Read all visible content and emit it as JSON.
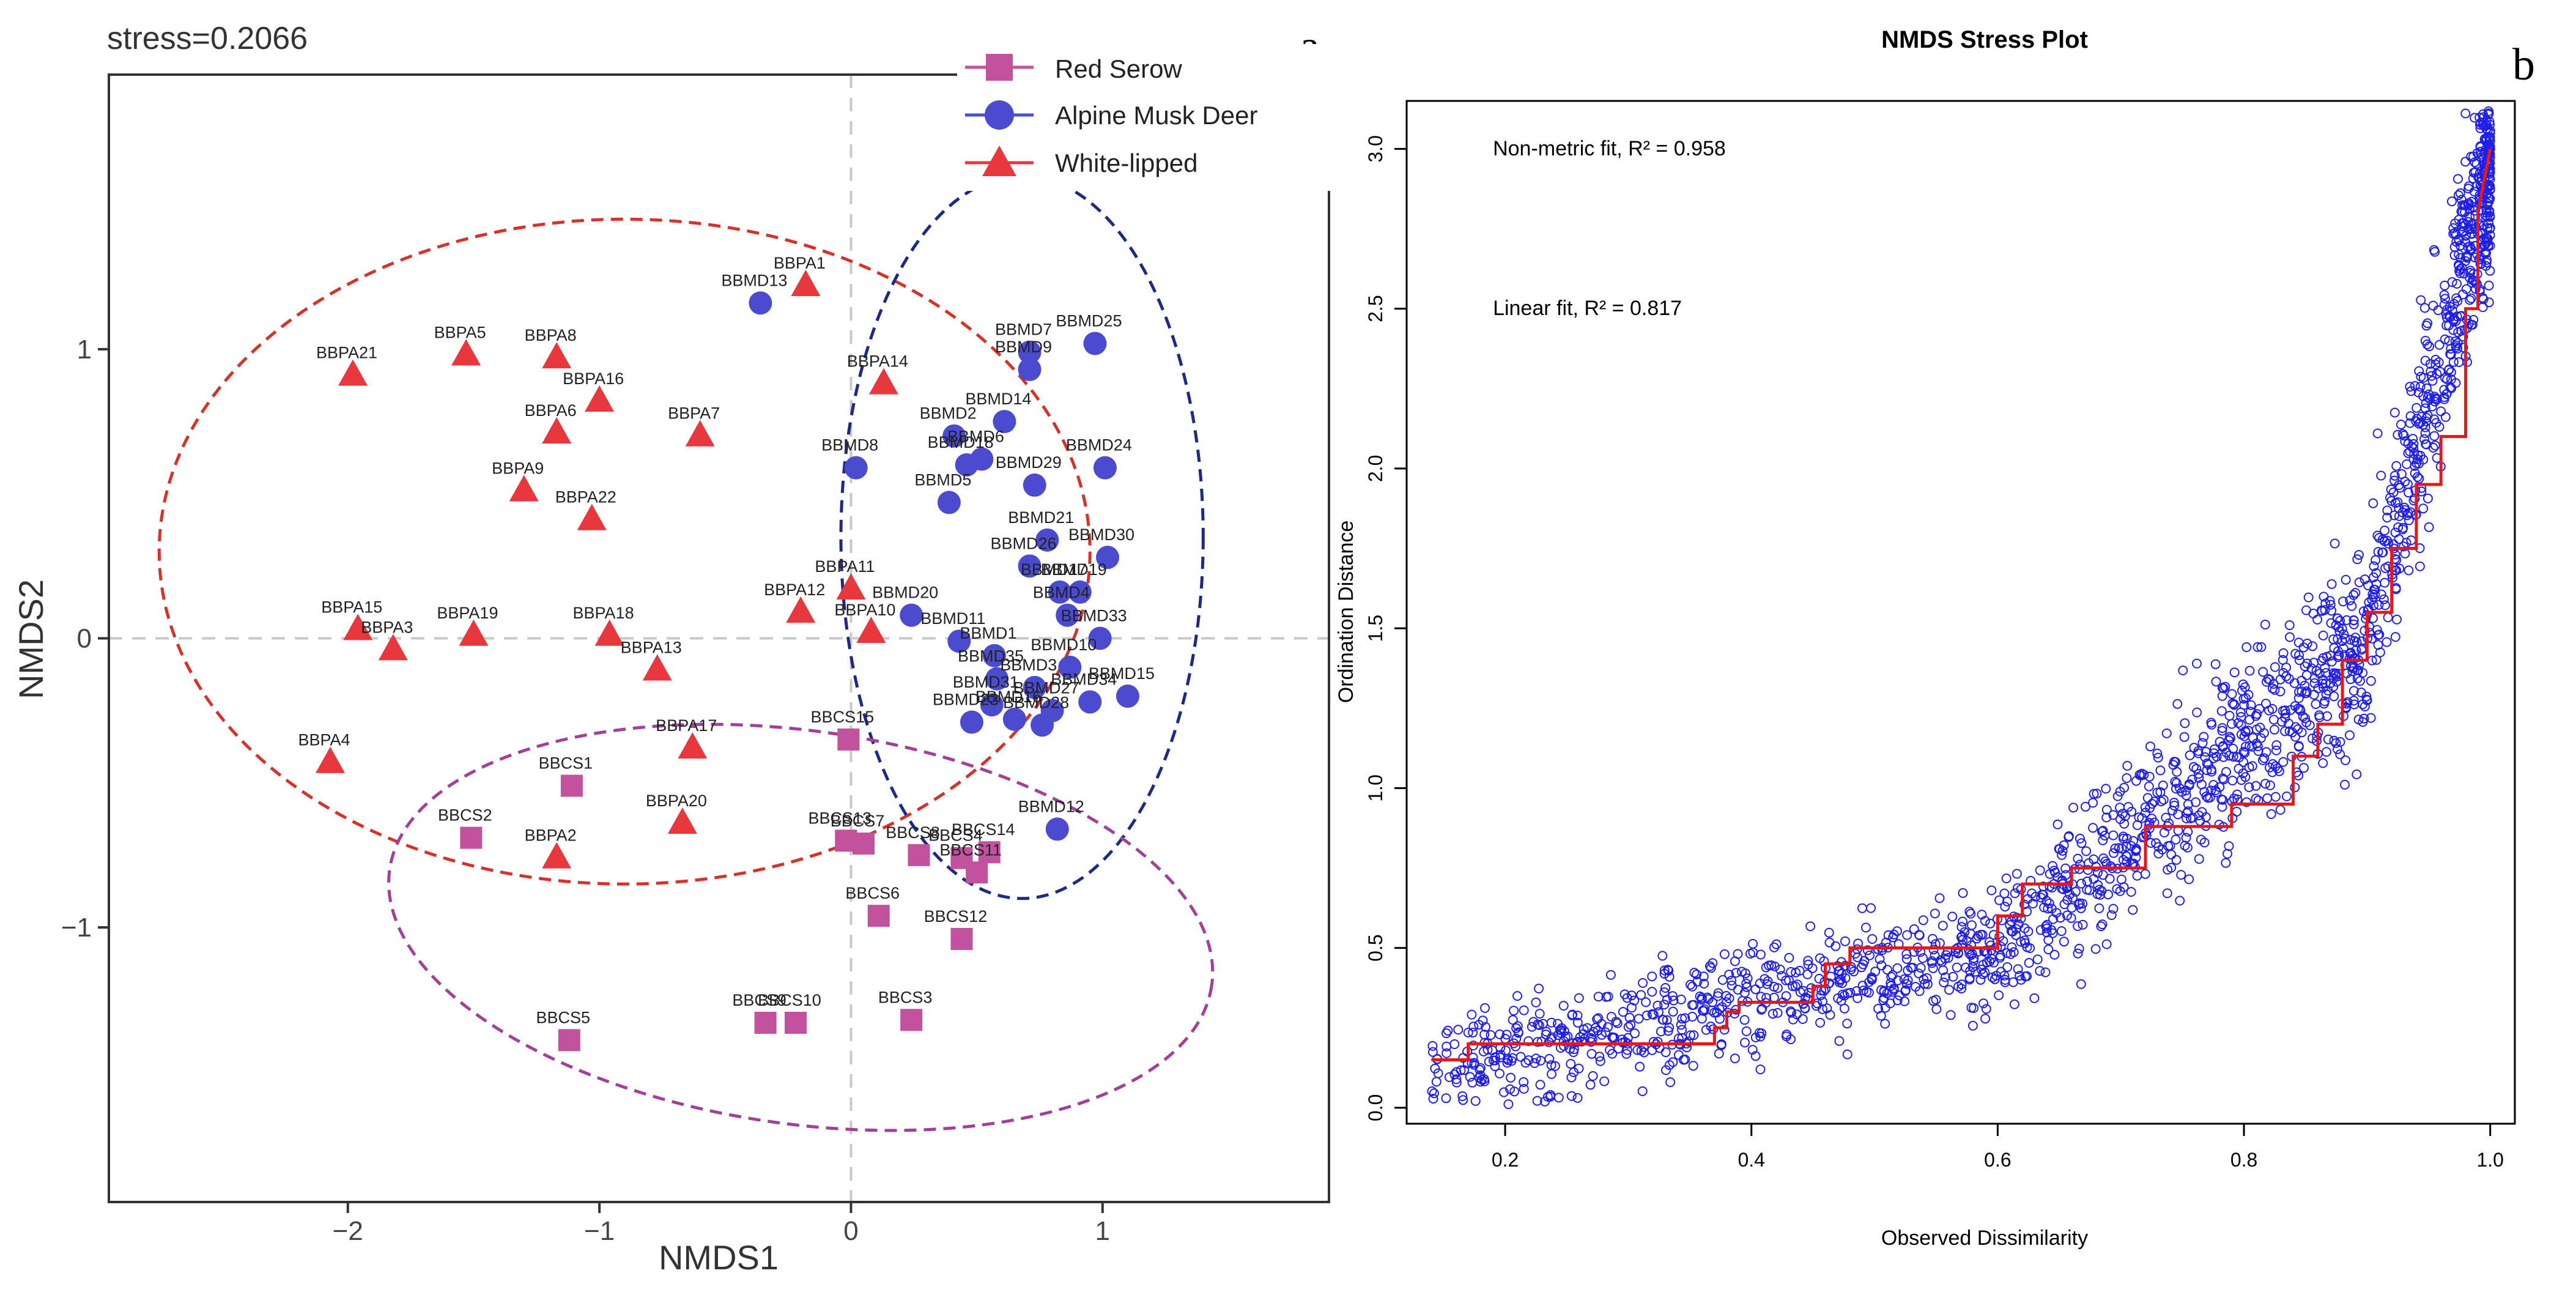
{
  "colors": {
    "red_serow": "#c2519e",
    "musk_deer": "#4a4bcf",
    "white_lipped": "#e8383d",
    "ellipse_red": "#d63228",
    "ellipse_blue": "#1c2a86",
    "ellipse_purple": "#a33f9b",
    "stress_points": "#1f1fe6",
    "stress_step": "#e81818"
  },
  "chart_data": [
    {
      "type": "scatter",
      "panel_label": "a",
      "title": "stress=0.2066",
      "xlabel": "NMDS1",
      "ylabel": "NMDS2",
      "xlim": [
        -2.95,
        1.9
      ],
      "ylim": [
        -1.95,
        1.95
      ],
      "xticks": [
        "−2",
        "−1",
        "0",
        "1"
      ],
      "xtick_values": [
        -2,
        -1,
        0,
        1
      ],
      "yticks": [
        "−1",
        "0",
        "1"
      ],
      "ytick_values": [
        -1,
        0,
        1
      ],
      "legend": {
        "position": "top-right",
        "entries": [
          {
            "label": "Red Serow",
            "shape": "square"
          },
          {
            "label": "Alpine Musk Deer",
            "shape": "circle"
          },
          {
            "label": "White-lipped",
            "shape": "triangle"
          }
        ]
      },
      "ellipses": [
        {
          "group": "White-lipped",
          "center": [
            -0.9,
            0.3
          ],
          "axes": [
            1.85,
            1.15
          ],
          "angle_deg": 0
        },
        {
          "group": "Alpine Musk Deer",
          "center": [
            0.68,
            0.35
          ],
          "axes": [
            0.72,
            1.25
          ],
          "angle_deg": 0
        },
        {
          "group": "Red Serow",
          "center": [
            -0.2,
            -1.0
          ],
          "axes": [
            1.65,
            0.68
          ],
          "angle_deg": -8
        }
      ],
      "series": [
        {
          "name": "White-lipped",
          "shape": "triangle",
          "points": [
            {
              "label": "BBPA1",
              "x": -0.18,
              "y": 1.22
            },
            {
              "label": "BBPA5",
              "x": -1.53,
              "y": 0.98
            },
            {
              "label": "BBPA8",
              "x": -1.17,
              "y": 0.97
            },
            {
              "label": "BBPA21",
              "x": -1.98,
              "y": 0.91
            },
            {
              "label": "BBPA14",
              "x": 0.13,
              "y": 0.88
            },
            {
              "label": "BBPA16",
              "x": -1.0,
              "y": 0.82
            },
            {
              "label": "BBPA6",
              "x": -1.17,
              "y": 0.71
            },
            {
              "label": "BBPA7",
              "x": -0.6,
              "y": 0.7
            },
            {
              "label": "BBPA9",
              "x": -1.3,
              "y": 0.51
            },
            {
              "label": "BBPA22",
              "x": -1.03,
              "y": 0.41
            },
            {
              "label": "BBPA11",
              "x": 0.0,
              "y": 0.17
            },
            {
              "label": "BBPA12",
              "x": -0.2,
              "y": 0.09
            },
            {
              "label": "BBPA15",
              "x": -1.96,
              "y": 0.03
            },
            {
              "label": "BBPA19",
              "x": -1.5,
              "y": 0.01
            },
            {
              "label": "BBPA18",
              "x": -0.96,
              "y": 0.01
            },
            {
              "label": "BBPA3",
              "x": -1.82,
              "y": -0.04
            },
            {
              "label": "BBPA10",
              "x": 0.08,
              "y": 0.02
            },
            {
              "label": "BBPA13",
              "x": -0.77,
              "y": -0.11
            },
            {
              "label": "BBPA17",
              "x": -0.63,
              "y": -0.38
            },
            {
              "label": "BBPA4",
              "x": -2.07,
              "y": -0.43
            },
            {
              "label": "BBPA20",
              "x": -0.67,
              "y": -0.64
            },
            {
              "label": "BBPA2",
              "x": -1.17,
              "y": -0.76
            }
          ]
        },
        {
          "name": "Alpine Musk Deer",
          "shape": "circle",
          "points": [
            {
              "label": "BBMD13",
              "x": -0.36,
              "y": 1.16
            },
            {
              "label": "BBMD25",
              "x": 0.97,
              "y": 1.02
            },
            {
              "label": "BBMD7",
              "x": 0.71,
              "y": 0.99
            },
            {
              "label": "BBMD9",
              "x": 0.71,
              "y": 0.93
            },
            {
              "label": "BBMD14",
              "x": 0.61,
              "y": 0.75
            },
            {
              "label": "BBMD2",
              "x": 0.41,
              "y": 0.7
            },
            {
              "label": "BBMD6",
              "x": 0.52,
              "y": 0.62
            },
            {
              "label": "BBMD18",
              "x": 0.46,
              "y": 0.6
            },
            {
              "label": "BBMD8",
              "x": 0.02,
              "y": 0.59
            },
            {
              "label": "BBMD24",
              "x": 1.01,
              "y": 0.59
            },
            {
              "label": "BBMD29",
              "x": 0.73,
              "y": 0.53
            },
            {
              "label": "BBMD5",
              "x": 0.39,
              "y": 0.47
            },
            {
              "label": "BBMD21",
              "x": 0.78,
              "y": 0.34
            },
            {
              "label": "BBMD30",
              "x": 1.02,
              "y": 0.28
            },
            {
              "label": "BBMD26",
              "x": 0.71,
              "y": 0.25
            },
            {
              "label": "BBMD19",
              "x": 0.91,
              "y": 0.16
            },
            {
              "label": "BBMD17",
              "x": 0.83,
              "y": 0.16
            },
            {
              "label": "BBMD20",
              "x": 0.24,
              "y": 0.08
            },
            {
              "label": "BBMD4",
              "x": 0.86,
              "y": 0.08
            },
            {
              "label": "BBMD33",
              "x": 0.99,
              "y": 0.0
            },
            {
              "label": "BBMD11",
              "x": 0.43,
              "y": -0.01
            },
            {
              "label": "BBMD1",
              "x": 0.57,
              "y": -0.06
            },
            {
              "label": "BBMD10",
              "x": 0.87,
              "y": -0.1
            },
            {
              "label": "BBMD35",
              "x": 0.58,
              "y": -0.14
            },
            {
              "label": "BBMD3",
              "x": 0.73,
              "y": -0.17
            },
            {
              "label": "BBMD15",
              "x": 1.1,
              "y": -0.2
            },
            {
              "label": "BBMD31",
              "x": 0.56,
              "y": -0.23
            },
            {
              "label": "BBMD27",
              "x": 0.8,
              "y": -0.25
            },
            {
              "label": "BBMD23",
              "x": 0.48,
              "y": -0.29
            },
            {
              "label": "BBMD16",
              "x": 0.65,
              "y": -0.28
            },
            {
              "label": "BBMD34",
              "x": 0.95,
              "y": -0.22
            },
            {
              "label": "BBMD28",
              "x": 0.76,
              "y": -0.3
            },
            {
              "label": "BBMD12",
              "x": 0.82,
              "y": -0.66
            }
          ]
        },
        {
          "name": "Red Serow",
          "shape": "square",
          "points": [
            {
              "label": "BBCS15",
              "x": -0.01,
              "y": -0.35
            },
            {
              "label": "BBCS1",
              "x": -1.11,
              "y": -0.51
            },
            {
              "label": "BBCS2",
              "x": -1.51,
              "y": -0.69
            },
            {
              "label": "BBCS13",
              "x": -0.02,
              "y": -0.7
            },
            {
              "label": "BBCS7",
              "x": 0.05,
              "y": -0.71
            },
            {
              "label": "BBCS8",
              "x": 0.27,
              "y": -0.75
            },
            {
              "label": "BBCS4",
              "x": 0.44,
              "y": -0.76
            },
            {
              "label": "BBCS14",
              "x": 0.55,
              "y": -0.74
            },
            {
              "label": "BBCS11",
              "x": 0.5,
              "y": -0.81
            },
            {
              "label": "BBCS6",
              "x": 0.11,
              "y": -0.96
            },
            {
              "label": "BBCS12",
              "x": 0.44,
              "y": -1.04
            },
            {
              "label": "BBCS3",
              "x": 0.24,
              "y": -1.32
            },
            {
              "label": "BBCS9",
              "x": -0.34,
              "y": -1.33
            },
            {
              "label": "BBCS10",
              "x": -0.22,
              "y": -1.33
            },
            {
              "label": "BBCS5",
              "x": -1.12,
              "y": -1.39
            }
          ]
        }
      ]
    },
    {
      "type": "scatter",
      "panel_label": "b",
      "title": "NMDS Stress Plot",
      "xlabel": "Observed Dissimilarity",
      "ylabel": "Ordination Distance",
      "xlim": [
        0.12,
        1.02
      ],
      "ylim": [
        -0.05,
        3.15
      ],
      "xticks": [
        "0.2",
        "0.4",
        "0.6",
        "0.8",
        "1.0"
      ],
      "xtick_values": [
        0.2,
        0.4,
        0.6,
        0.8,
        1.0
      ],
      "yticks": [
        "0.0",
        "0.5",
        "1.0",
        "1.5",
        "2.0",
        "2.5",
        "3.0"
      ],
      "ytick_values": [
        0.0,
        0.5,
        1.0,
        1.5,
        2.0,
        2.5,
        3.0
      ],
      "annotations": [
        {
          "label": "Non-metric fit, R² = 0.958",
          "x": 0.2,
          "y": 2.98
        },
        {
          "label": "Linear fit, R² = 0.817",
          "x": 0.2,
          "y": 2.48
        }
      ],
      "point_cloud": {
        "n_points": 1900,
        "x_range": [
          0.14,
          1.0
        ],
        "y_range": [
          0.0,
          3.12
        ],
        "description_free": true
      },
      "step_line": {
        "x": [
          0.14,
          0.17,
          0.17,
          0.37,
          0.37,
          0.38,
          0.38,
          0.39,
          0.39,
          0.45,
          0.45,
          0.46,
          0.46,
          0.48,
          0.48,
          0.6,
          0.6,
          0.62,
          0.62,
          0.66,
          0.66,
          0.72,
          0.72,
          0.79,
          0.79,
          0.84,
          0.84,
          0.86,
          0.86,
          0.88,
          0.88,
          0.9,
          0.9,
          0.92,
          0.92,
          0.94,
          0.94,
          0.96,
          0.96,
          0.98,
          0.98,
          0.99,
          0.99,
          1.0
        ],
        "y": [
          0.15,
          0.15,
          0.2,
          0.2,
          0.25,
          0.25,
          0.3,
          0.3,
          0.33,
          0.33,
          0.38,
          0.38,
          0.45,
          0.45,
          0.5,
          0.5,
          0.6,
          0.6,
          0.7,
          0.7,
          0.75,
          0.75,
          0.88,
          0.88,
          0.95,
          0.95,
          1.1,
          1.1,
          1.2,
          1.2,
          1.4,
          1.4,
          1.55,
          1.55,
          1.75,
          1.75,
          1.95,
          1.95,
          2.1,
          2.1,
          2.5,
          2.5,
          2.8,
          3.0
        ]
      }
    }
  ]
}
